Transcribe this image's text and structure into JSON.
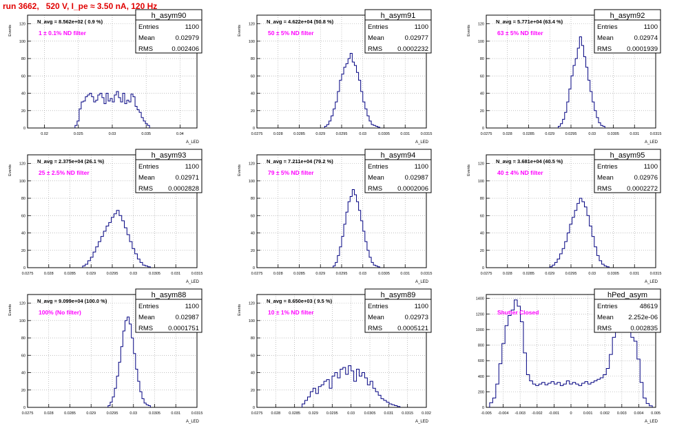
{
  "run_title": "run 3662,   520 V, I_pe ≈ 3.50 nA, 120 Hz",
  "colors": {
    "title": "#e00000",
    "note": "#ff00ff",
    "hist": "#000080",
    "grid": "#999999"
  },
  "chart_data": [
    {
      "type": "histogram",
      "name": "h_asym90",
      "ylabel": "Events",
      "xlabel": "A_LED",
      "xlim": [
        0.0175,
        0.0425
      ],
      "xticks": [
        "0.02",
        "0.025",
        "0.03",
        "0.035",
        "0.04"
      ],
      "xtick_vals": [
        0.02,
        0.025,
        0.03,
        0.035,
        0.04
      ],
      "ylim": [
        0,
        130
      ],
      "yticks": [
        0,
        20,
        40,
        60,
        80,
        100,
        120
      ],
      "navg": "N_avg = 8.562e+02 ( 0.9 %)",
      "note": "1 ± 0.1% ND filter",
      "stats": [
        [
          "Entries",
          "1100"
        ],
        [
          "Mean",
          "0.02979"
        ],
        [
          "RMS",
          "0.002406"
        ]
      ],
      "bins": {
        "lo": 0.0245,
        "hi": 0.0355,
        "values": [
          3,
          8,
          22,
          30,
          31,
          36,
          38,
          40,
          36,
          30,
          32,
          38,
          40,
          35,
          28,
          40,
          31,
          34,
          30,
          38,
          42,
          35,
          30,
          40,
          28,
          32,
          30,
          39,
          36,
          25,
          21,
          18,
          12,
          8,
          5,
          3
        ]
      }
    },
    {
      "type": "histogram",
      "name": "h_asym91",
      "ylabel": "Events",
      "xlabel": "A_LED",
      "xlim": [
        0.0275,
        0.0315
      ],
      "xticks": [
        "0.0275",
        "0.028",
        "0.0285",
        "0.029",
        "0.0295",
        "0.03",
        "0.0305",
        "0.031",
        "0.0315"
      ],
      "xtick_vals": [
        0.0275,
        0.028,
        0.0285,
        0.029,
        0.0295,
        0.03,
        0.0305,
        0.031,
        0.0315
      ],
      "ylim": [
        0,
        130
      ],
      "yticks": [
        0,
        20,
        40,
        60,
        80,
        100,
        120
      ],
      "navg": "N_avg = 4.622e+04 (50.8 %)",
      "note": "50 ± 5% ND filter",
      "stats": [
        [
          "Entries",
          "1100"
        ],
        [
          "Mean",
          "0.02977"
        ],
        [
          "RMS",
          "0.0002232"
        ]
      ],
      "bins": {
        "lo": 0.0291,
        "hi": 0.0304,
        "values": [
          2,
          4,
          8,
          14,
          22,
          30,
          42,
          55,
          62,
          70,
          74,
          80,
          86,
          76,
          72,
          64,
          55,
          42,
          30,
          22,
          14,
          8,
          4,
          3,
          2,
          1
        ]
      }
    },
    {
      "type": "histogram",
      "name": "h_asym92",
      "ylabel": "Events",
      "xlabel": "A_LED",
      "xlim": [
        0.0275,
        0.0315
      ],
      "xticks": [
        "0.0275",
        "0.028",
        "0.0285",
        "0.029",
        "0.0295",
        "0.03",
        "0.0305",
        "0.031",
        "0.0315"
      ],
      "xtick_vals": [
        0.0275,
        0.028,
        0.0285,
        0.029,
        0.0295,
        0.03,
        0.0305,
        0.031,
        0.0315
      ],
      "ylim": [
        0,
        130
      ],
      "yticks": [
        0,
        20,
        40,
        60,
        80,
        100,
        120
      ],
      "navg": "N_avg = 5.771e+04 (63.4 %)",
      "note": "63 ± 5% ND filter",
      "stats": [
        [
          "Entries",
          "1100"
        ],
        [
          "Mean",
          "0.02974"
        ],
        [
          "RMS",
          "0.0001939"
        ]
      ],
      "bins": {
        "lo": 0.0292,
        "hi": 0.0303,
        "values": [
          2,
          5,
          10,
          18,
          30,
          45,
          60,
          72,
          80,
          92,
          105,
          95,
          82,
          70,
          55,
          42,
          30,
          20,
          12,
          6,
          3,
          2
        ]
      }
    },
    {
      "type": "histogram",
      "name": "h_asym93",
      "ylabel": "Events",
      "xlabel": "A_LED",
      "xlim": [
        0.0275,
        0.0315
      ],
      "xticks": [
        "0.0275",
        "0.028",
        "0.0285",
        "0.029",
        "0.0295",
        "0.03",
        "0.0305",
        "0.031",
        "0.0315"
      ],
      "xtick_vals": [
        0.0275,
        0.028,
        0.0285,
        0.029,
        0.0295,
        0.03,
        0.0305,
        0.031,
        0.0315
      ],
      "ylim": [
        0,
        130
      ],
      "yticks": [
        0,
        20,
        40,
        60,
        80,
        100,
        120
      ],
      "navg": "N_avg = 2.375e+04 (26.1 %)",
      "note": "25 ± 2.5% ND filter",
      "stats": [
        [
          "Entries",
          "1100"
        ],
        [
          "Mean",
          "0.02971"
        ],
        [
          "RMS",
          "0.0002828"
        ]
      ],
      "bins": {
        "lo": 0.0288,
        "hi": 0.0304,
        "values": [
          2,
          4,
          8,
          12,
          18,
          24,
          30,
          36,
          42,
          48,
          52,
          58,
          62,
          66,
          60,
          54,
          46,
          38,
          30,
          22,
          16,
          10,
          6,
          3,
          2,
          1
        ]
      }
    },
    {
      "type": "histogram",
      "name": "h_asym94",
      "ylabel": "Events",
      "xlabel": "A_LED",
      "xlim": [
        0.0275,
        0.0315
      ],
      "xticks": [
        "0.0275",
        "0.028",
        "0.0285",
        "0.029",
        "0.0295",
        "0.03",
        "0.0305",
        "0.031",
        "0.0315"
      ],
      "xtick_vals": [
        0.0275,
        0.028,
        0.0285,
        0.029,
        0.0295,
        0.03,
        0.0305,
        0.031,
        0.0315
      ],
      "ylim": [
        0,
        130
      ],
      "yticks": [
        0,
        20,
        40,
        60,
        80,
        100,
        120
      ],
      "navg": "N_avg = 7.211e+04 (79.2 %)",
      "note": "79 ± 5% ND filter",
      "stats": [
        [
          "Entries",
          "1100"
        ],
        [
          "Mean",
          "0.02987"
        ],
        [
          "RMS",
          "0.0002006"
        ]
      ],
      "bins": {
        "lo": 0.0293,
        "hi": 0.0304,
        "values": [
          2,
          6,
          14,
          24,
          36,
          50,
          64,
          76,
          82,
          90,
          84,
          76,
          66,
          54,
          42,
          30,
          20,
          12,
          6,
          3,
          2,
          1
        ]
      }
    },
    {
      "type": "histogram",
      "name": "h_asym95",
      "ylabel": "Events",
      "xlabel": "A_LED",
      "xlim": [
        0.0275,
        0.0315
      ],
      "xticks": [
        "0.0275",
        "0.028",
        "0.0285",
        "0.029",
        "0.0295",
        "0.03",
        "0.0305",
        "0.031",
        "0.0315"
      ],
      "xtick_vals": [
        0.0275,
        0.028,
        0.0285,
        0.029,
        0.0295,
        0.03,
        0.0305,
        0.031,
        0.0315
      ],
      "ylim": [
        0,
        130
      ],
      "yticks": [
        0,
        20,
        40,
        60,
        80,
        100,
        120
      ],
      "navg": "N_avg = 3.681e+04 (40.5 %)",
      "note": "40 ± 4% ND filter",
      "stats": [
        [
          "Entries",
          "1100"
        ],
        [
          "Mean",
          "0.02976"
        ],
        [
          "RMS",
          "0.0002272"
        ]
      ],
      "bins": {
        "lo": 0.029,
        "hi": 0.0304,
        "values": [
          1,
          3,
          6,
          10,
          16,
          22,
          30,
          40,
          50,
          58,
          66,
          74,
          80,
          76,
          70,
          60,
          48,
          36,
          24,
          14,
          8,
          4,
          2,
          1
        ]
      }
    },
    {
      "type": "histogram",
      "name": "h_asym88",
      "ylabel": "Events",
      "xlabel": "A_LED",
      "xlim": [
        0.0275,
        0.0315
      ],
      "xticks": [
        "0.0275",
        "0.028",
        "0.0285",
        "0.029",
        "0.0295",
        "0.03",
        "0.0305",
        "0.031",
        "0.0315"
      ],
      "xtick_vals": [
        0.0275,
        0.028,
        0.0285,
        0.029,
        0.0295,
        0.03,
        0.0305,
        0.031,
        0.0315
      ],
      "ylim": [
        0,
        130
      ],
      "yticks": [
        0,
        20,
        40,
        60,
        80,
        100,
        120
      ],
      "navg": "N_avg = 9.099e+04 (100.0 %)",
      "note": "100% (No filter)",
      "stats": [
        [
          "Entries",
          "1100"
        ],
        [
          "Mean",
          "0.02987"
        ],
        [
          "RMS",
          "0.0001751"
        ]
      ],
      "bins": {
        "lo": 0.0294,
        "hi": 0.0304,
        "values": [
          2,
          6,
          12,
          22,
          36,
          52,
          70,
          88,
          100,
          104,
          96,
          80,
          62,
          44,
          30,
          18,
          10,
          5,
          3,
          2
        ]
      }
    },
    {
      "type": "histogram",
      "name": "h_asym89",
      "ylabel": "Events",
      "xlabel": "A_LED",
      "xlim": [
        0.0275,
        0.032
      ],
      "xticks": [
        "0.0275",
        "0.028",
        "0.0285",
        "0.029",
        "0.0295",
        "0.03",
        "0.0305",
        "0.031",
        "0.0315",
        "0.032"
      ],
      "xtick_vals": [
        0.0275,
        0.028,
        0.0285,
        0.029,
        0.0295,
        0.03,
        0.0305,
        0.031,
        0.0315,
        0.032
      ],
      "ylim": [
        0,
        130
      ],
      "yticks": [
        0,
        20,
        40,
        60,
        80,
        100,
        120
      ],
      "navg": "N_avg = 8.650e+03 ( 9.5 %)",
      "note": "10 ± 1% ND filter",
      "stats": [
        [
          "Entries",
          "1100"
        ],
        [
          "Mean",
          "0.02973"
        ],
        [
          "RMS",
          "0.0005121"
        ]
      ],
      "bins": {
        "lo": 0.0287,
        "hi": 0.0313,
        "values": [
          4,
          8,
          12,
          18,
          22,
          16,
          24,
          26,
          30,
          32,
          22,
          36,
          40,
          34,
          44,
          46,
          38,
          48,
          42,
          30,
          44,
          36,
          40,
          34,
          26,
          30,
          22,
          18,
          14,
          10,
          8,
          6,
          4,
          3,
          2,
          1
        ]
      }
    },
    {
      "type": "histogram",
      "name": "hPed_asym",
      "ylabel": "",
      "xlabel": "A_LED",
      "xlim": [
        -0.005,
        0.005
      ],
      "xticks": [
        "-0.005",
        "-0.004",
        "-0.003",
        "-0.002",
        "-0.001",
        "0",
        "0.001",
        "0.002",
        "0.003",
        "0.004",
        "0.005"
      ],
      "xtick_vals": [
        -0.005,
        -0.004,
        -0.003,
        -0.002,
        -0.001,
        0,
        0.001,
        0.002,
        0.003,
        0.004,
        0.005
      ],
      "ylim": [
        0,
        1450
      ],
      "yticks": [
        0,
        200,
        400,
        600,
        800,
        1000,
        1200,
        1400
      ],
      "navg": "",
      "note": "Shutter Closed",
      "stats": [
        [
          "Entries",
          "48619"
        ],
        [
          "Mean",
          "2.252e-06"
        ],
        [
          "RMS",
          "0.002835"
        ]
      ],
      "bins": {
        "lo": -0.0048,
        "hi": 0.0048,
        "values": [
          60,
          120,
          300,
          560,
          820,
          1050,
          1180,
          1250,
          1380,
          1300,
          1100,
          700,
          420,
          340,
          300,
          280,
          300,
          320,
          290,
          310,
          330,
          300,
          320,
          280,
          300,
          340,
          300,
          320,
          300,
          280,
          310,
          330,
          300,
          320,
          340,
          360,
          380,
          420,
          500,
          680,
          900,
          1150,
          1250,
          1100,
          1050,
          980,
          900,
          850,
          620,
          320,
          120,
          50,
          20
        ]
      }
    }
  ]
}
